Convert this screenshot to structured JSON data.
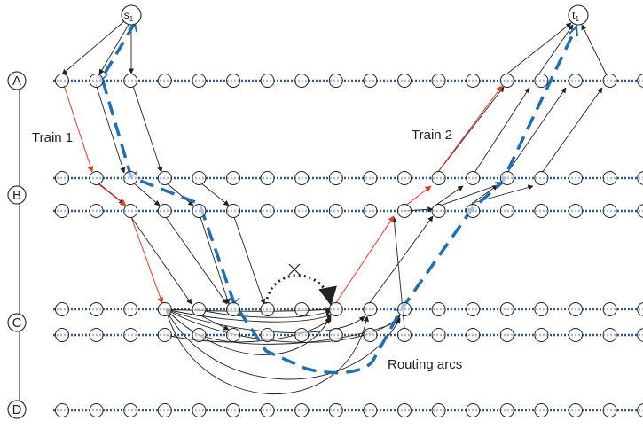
{
  "stations": [
    "A",
    "B",
    "C",
    "D"
  ],
  "source": {
    "label": "s",
    "sub": "1"
  },
  "sink": {
    "label": "t",
    "sub": "1"
  },
  "labels": {
    "train1": "Train 1",
    "train2": "Train 2",
    "routing": "Routing arcs"
  },
  "colors": {
    "track": "#2e5a8a",
    "track_dot": "#9db8d8",
    "train_arc": "#e23b2a",
    "path": "#1f6fb4",
    "arc": "#222222",
    "blocked_arc": "#222222",
    "node_stroke": "#222222"
  },
  "track_count": 7,
  "nodes_per_track": 18
}
